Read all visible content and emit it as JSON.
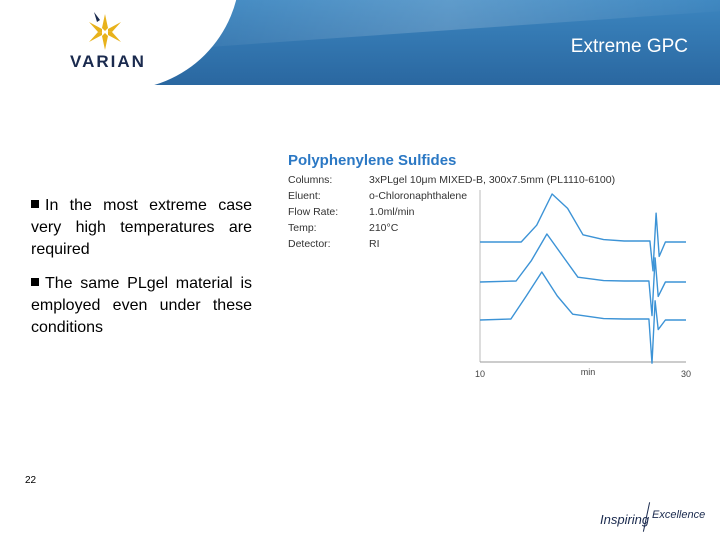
{
  "header": {
    "logo_text": "VARIAN",
    "title": "Extreme GPC",
    "colors": {
      "band": "#2f72a8",
      "logo": "#1a2a4e",
      "star": "#e8b21b"
    }
  },
  "bullets": [
    {
      "text": "In the most extreme case very high temperatures are required"
    },
    {
      "text": "The same PLgel material is employed even under these conditions"
    }
  ],
  "figure": {
    "title": "Polyphenylene Sulfides",
    "params": [
      {
        "label": "Columns:",
        "value": "3xPLgel 10μm MIXED-B, 300x7.5mm (PL1110-6100)"
      },
      {
        "label": "Eluent:",
        "value": "o-Chloronaphthalene"
      },
      {
        "label": "Flow Rate:",
        "value": "1.0ml/min"
      },
      {
        "label": "Temp:",
        "value": "210°C"
      },
      {
        "label": "Detector:",
        "value": "RI"
      }
    ]
  },
  "chart_data": {
    "type": "line",
    "xlabel": "min",
    "xlim": [
      10,
      30
    ],
    "xticks": [
      "10",
      "30"
    ],
    "series": [
      {
        "x": [
          10,
          14,
          15.5,
          17,
          18.5,
          20,
          22,
          24,
          26.5,
          26.8,
          27.1,
          27.4,
          28,
          30
        ],
        "y": [
          0.0,
          0.0,
          0.35,
          1.0,
          0.7,
          0.15,
          0.05,
          0.02,
          0.02,
          -0.6,
          0.6,
          -0.3,
          0.0,
          0.0
        ]
      },
      {
        "x": [
          10,
          13.5,
          15,
          16.5,
          18,
          19.5,
          22,
          24,
          26.4,
          26.7,
          27.0,
          27.3,
          28,
          30
        ],
        "y": [
          0.0,
          0.02,
          0.45,
          1.0,
          0.55,
          0.1,
          0.03,
          0.02,
          0.02,
          -0.7,
          0.5,
          -0.3,
          0.0,
          0.0
        ]
      },
      {
        "x": [
          10,
          13,
          14.5,
          16,
          17.5,
          19,
          22,
          24,
          26.4,
          26.7,
          27.0,
          27.3,
          28,
          30
        ],
        "y": [
          0.0,
          0.02,
          0.5,
          1.0,
          0.5,
          0.12,
          0.03,
          0.02,
          0.02,
          -0.9,
          0.4,
          -0.2,
          0.0,
          0.0
        ]
      }
    ],
    "color": "#3c93d6"
  },
  "footer": {
    "page_number": "22",
    "tagline_left": "Inspiring",
    "tagline_right": "Excellence"
  }
}
